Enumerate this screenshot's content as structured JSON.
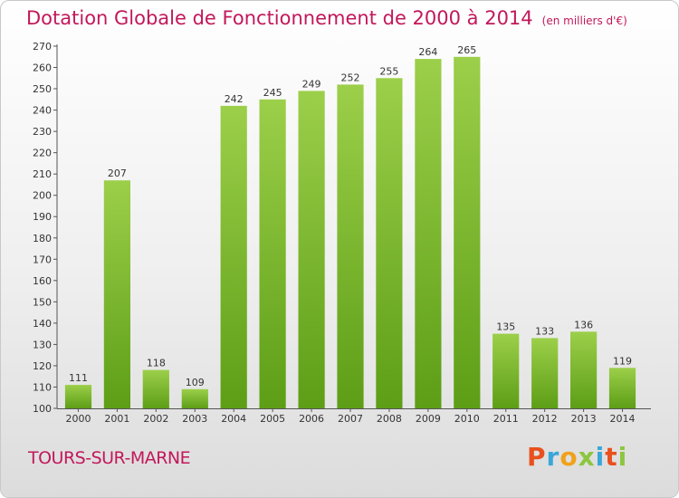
{
  "header": {
    "title": "Dotation Globale de Fonctionnement de 2000 à 2014",
    "subtitle": "(en milliers d'€)"
  },
  "footer": {
    "town": "TOURS-SUR-MARNE",
    "logo_text": "Proxiti",
    "logo_colors": [
      "#e8501e",
      "#3aa7d9",
      "#f0a21b",
      "#8cc63f",
      "#3aa7d9",
      "#e8501e",
      "#8cc63f"
    ]
  },
  "chart_data": {
    "type": "bar",
    "categories": [
      "2000",
      "2001",
      "2002",
      "2003",
      "2004",
      "2005",
      "2006",
      "2007",
      "2008",
      "2009",
      "2010",
      "2011",
      "2012",
      "2013",
      "2014"
    ],
    "values": [
      111,
      207,
      118,
      109,
      242,
      245,
      249,
      252,
      255,
      264,
      265,
      135,
      133,
      136,
      119
    ],
    "title": "Dotation Globale de Fonctionnement de 2000 à 2014",
    "subtitle": "(en milliers d'€)",
    "xlabel": "",
    "ylabel": "",
    "ylim": [
      100,
      270
    ],
    "yticks": [
      100,
      110,
      120,
      130,
      140,
      150,
      160,
      170,
      180,
      190,
      200,
      210,
      220,
      230,
      240,
      250,
      260,
      270
    ],
    "grid": false,
    "bar_color_top": "#9ccf4a",
    "bar_color_bottom": "#5d9e16",
    "data_labels": true
  }
}
